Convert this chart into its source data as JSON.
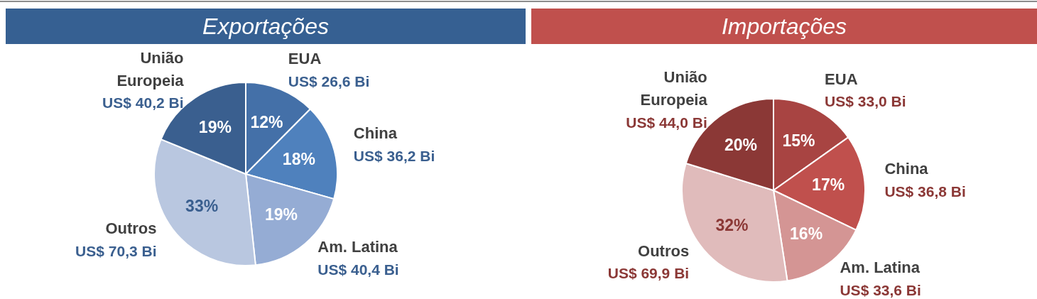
{
  "chart_data": [
    {
      "type": "pie",
      "title": "Exportações",
      "categories": [
        "EUA",
        "China",
        "Am. Latina",
        "Outros",
        "União Europeia"
      ],
      "values": [
        26.6,
        36.2,
        40.4,
        70.3,
        40.2
      ],
      "colors": [
        "#4470a8",
        "#4f81bd",
        "#95acd4",
        "#b9c7e0",
        "#3a5f8f"
      ],
      "value_labels": [
        "US$ 26,6 Bi",
        "US$ 36,2 Bi",
        "US$ 40,4 Bi",
        "US$ 70,3 Bi",
        "US$ 40,2 Bi"
      ],
      "annotations": [
        "12%",
        "18%",
        "19%",
        "33%",
        "19%"
      ],
      "legend": false
    },
    {
      "type": "pie",
      "title": "Importações",
      "categories": [
        "EUA",
        "China",
        "Am. Latina",
        "Outros",
        "União Europeia"
      ],
      "values": [
        33.0,
        36.8,
        33.6,
        69.9,
        44.0
      ],
      "colors": [
        "#a84442",
        "#c0504d",
        "#d49594",
        "#e0bbbb",
        "#8b3836"
      ],
      "value_labels": [
        "US$ 33,0 Bi",
        "US$ 36,8 Bi",
        "US$ 33,6 Bi",
        "US$ 69,9 Bi",
        "US$ 44,0 Bi"
      ],
      "annotations": [
        "15%",
        "17%",
        "16%",
        "32%",
        "20%"
      ],
      "legend": false
    }
  ]
}
